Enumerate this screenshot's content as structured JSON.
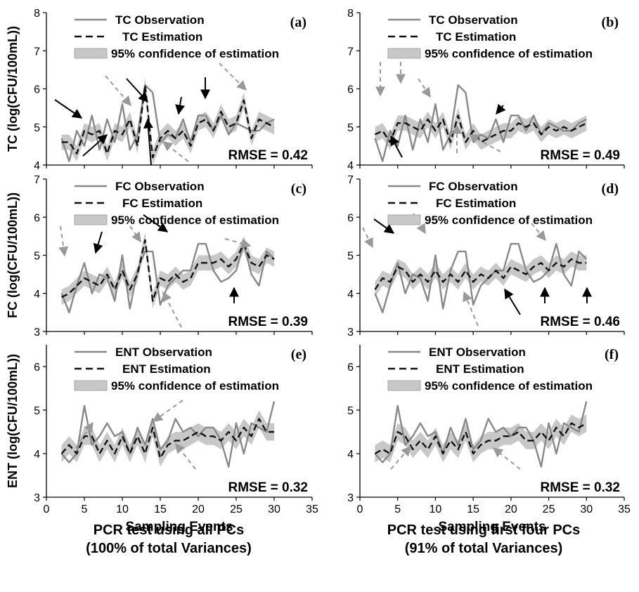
{
  "figure": {
    "captions": [
      {
        "line1": "PCR test using all PCs",
        "line2": "(100% of total Variances)"
      },
      {
        "line1": "PCR test using first four PCs",
        "line2": "(91% of total Variances)"
      }
    ],
    "xlabel": "Sampling Events",
    "legend_labels": {
      "conf": "95% confidence of estimation"
    },
    "colors": {
      "observation": "#888888",
      "estimation": "#111111",
      "confidence": "#c8c8c8",
      "arrow_black": "#000000",
      "arrow_gray": "#999999"
    }
  },
  "chart_data": [
    {
      "type": "line",
      "panel": "(a)",
      "ylabel": "TC (log(CFU/100mL))",
      "ylim": [
        4,
        8
      ],
      "yticks": [
        4,
        5,
        6,
        7,
        8
      ],
      "xlim": [
        0,
        35
      ],
      "xticks": [
        0,
        5,
        10,
        15,
        20,
        25,
        30,
        35
      ],
      "rmse": "RMSE = 0.42",
      "series": [
        {
          "name": "TC Observation",
          "kind": "observation",
          "x": [
            2,
            3,
            4,
            5,
            6,
            7,
            8,
            9,
            10,
            11,
            12,
            13,
            14,
            15,
            16,
            17,
            18,
            19,
            20,
            21,
            22,
            23,
            24,
            25,
            26,
            27,
            28,
            29,
            30
          ],
          "values": [
            4.7,
            4.1,
            4.9,
            4.5,
            5.3,
            4.4,
            5.2,
            4.6,
            5.6,
            4.4,
            4.8,
            6.1,
            5.9,
            4.6,
            4.8,
            4.7,
            5.2,
            4.6,
            5.3,
            5.3,
            4.9,
            5.3,
            4.8,
            5.1,
            5.0,
            4.9,
            4.9,
            5.1,
            5.2
          ]
        },
        {
          "name": "TC Estimation",
          "kind": "estimation",
          "x": [
            2,
            3,
            4,
            5,
            6,
            7,
            8,
            9,
            10,
            11,
            12,
            13,
            14,
            15,
            16,
            17,
            18,
            19,
            20,
            21,
            22,
            23,
            24,
            25,
            26,
            27,
            28,
            29,
            30
          ],
          "values": [
            4.6,
            4.6,
            4.3,
            4.9,
            4.8,
            4.9,
            4.3,
            4.9,
            4.8,
            5.2,
            4.5,
            6.1,
            4.2,
            4.7,
            4.9,
            4.7,
            4.9,
            4.5,
            5.1,
            5.2,
            4.9,
            5.4,
            5.0,
            5.1,
            5.7,
            4.7,
            5.2,
            5.1,
            5.0
          ]
        }
      ]
    },
    {
      "type": "line",
      "panel": "(b)",
      "ylabel": "",
      "ylim": [
        4,
        8
      ],
      "yticks": [
        4,
        5,
        6,
        7,
        8
      ],
      "xlim": [
        0,
        35
      ],
      "xticks": [
        0,
        5,
        10,
        15,
        20,
        25,
        30,
        35
      ],
      "rmse": "RMSE = 0.49",
      "series": [
        {
          "name": "TC Observation",
          "kind": "observation",
          "x": [
            2,
            3,
            4,
            5,
            6,
            7,
            8,
            9,
            10,
            11,
            12,
            13,
            14,
            15,
            16,
            17,
            18,
            19,
            20,
            21,
            22,
            23,
            24,
            25,
            26,
            27,
            28,
            29,
            30
          ],
          "values": [
            4.7,
            4.1,
            4.9,
            4.5,
            5.3,
            4.4,
            5.2,
            4.6,
            5.6,
            4.4,
            4.8,
            6.1,
            5.9,
            4.6,
            4.8,
            4.7,
            5.2,
            4.6,
            5.3,
            5.3,
            4.9,
            5.3,
            4.8,
            5.1,
            5.0,
            4.9,
            4.9,
            5.1,
            5.2
          ]
        },
        {
          "name": "TC Estimation",
          "kind": "estimation",
          "x": [
            2,
            3,
            4,
            5,
            6,
            7,
            8,
            9,
            10,
            11,
            12,
            13,
            14,
            15,
            16,
            17,
            18,
            19,
            20,
            21,
            22,
            23,
            24,
            25,
            26,
            27,
            28,
            29,
            30
          ],
          "values": [
            4.8,
            4.9,
            4.6,
            5.1,
            5.1,
            5.0,
            4.9,
            5.2,
            4.9,
            5.2,
            4.6,
            5.3,
            4.6,
            4.9,
            4.6,
            4.7,
            4.8,
            4.9,
            4.9,
            5.1,
            5.0,
            5.1,
            4.8,
            5.0,
            4.9,
            5.0,
            4.9,
            5.0,
            5.1
          ]
        }
      ]
    },
    {
      "type": "line",
      "panel": "(c)",
      "ylabel": "FC (log(CFU/100mL))",
      "ylim": [
        3,
        7
      ],
      "yticks": [
        3,
        4,
        5,
        6,
        7
      ],
      "xlim": [
        0,
        35
      ],
      "xticks": [
        0,
        5,
        10,
        15,
        20,
        25,
        30,
        35
      ],
      "rmse": "RMSE = 0.39",
      "series": [
        {
          "name": "FC Observation",
          "kind": "observation",
          "x": [
            2,
            3,
            4,
            5,
            6,
            7,
            8,
            9,
            10,
            11,
            12,
            13,
            14,
            15,
            16,
            17,
            18,
            19,
            20,
            21,
            22,
            23,
            24,
            25,
            26,
            27,
            28,
            29,
            30
          ],
          "values": [
            4.0,
            3.5,
            4.2,
            4.8,
            4.0,
            4.5,
            4.4,
            3.8,
            5.0,
            3.6,
            4.6,
            5.1,
            5.1,
            3.7,
            4.2,
            4.4,
            4.6,
            4.6,
            5.3,
            5.3,
            4.6,
            4.3,
            4.4,
            4.6,
            5.3,
            4.5,
            4.2,
            5.1,
            4.9
          ]
        },
        {
          "name": "FC Estimation",
          "kind": "estimation",
          "x": [
            2,
            3,
            4,
            5,
            6,
            7,
            8,
            9,
            10,
            11,
            12,
            13,
            14,
            15,
            16,
            17,
            18,
            19,
            20,
            21,
            22,
            23,
            24,
            25,
            26,
            27,
            28,
            29,
            30
          ],
          "values": [
            3.9,
            4.0,
            4.2,
            4.4,
            4.3,
            4.2,
            4.5,
            4.1,
            4.6,
            4.1,
            4.5,
            5.4,
            3.8,
            4.4,
            4.3,
            4.5,
            4.3,
            4.4,
            4.8,
            4.8,
            4.8,
            4.9,
            4.7,
            4.9,
            5.3,
            4.8,
            4.7,
            5.0,
            4.9
          ]
        }
      ]
    },
    {
      "type": "line",
      "panel": "(d)",
      "ylabel": "",
      "ylim": [
        3,
        7
      ],
      "yticks": [
        3,
        4,
        5,
        6,
        7
      ],
      "xlim": [
        0,
        35
      ],
      "xticks": [
        0,
        5,
        10,
        15,
        20,
        25,
        30,
        35
      ],
      "rmse": "RMSE = 0.46",
      "series": [
        {
          "name": "FC Observation",
          "kind": "observation",
          "x": [
            2,
            3,
            4,
            5,
            6,
            7,
            8,
            9,
            10,
            11,
            12,
            13,
            14,
            15,
            16,
            17,
            18,
            19,
            20,
            21,
            22,
            23,
            24,
            25,
            26,
            27,
            28,
            29,
            30
          ],
          "values": [
            4.0,
            3.5,
            4.2,
            4.8,
            4.0,
            4.5,
            4.4,
            3.8,
            5.0,
            3.6,
            4.6,
            5.1,
            5.1,
            3.7,
            4.2,
            4.4,
            4.6,
            4.6,
            5.3,
            5.3,
            4.6,
            4.3,
            4.4,
            4.6,
            5.3,
            4.5,
            4.2,
            5.1,
            4.9
          ]
        },
        {
          "name": "FC Estimation",
          "kind": "estimation",
          "x": [
            2,
            3,
            4,
            5,
            6,
            7,
            8,
            9,
            10,
            11,
            12,
            13,
            14,
            15,
            16,
            17,
            18,
            19,
            20,
            21,
            22,
            23,
            24,
            25,
            26,
            27,
            28,
            29,
            30
          ],
          "values": [
            4.1,
            4.4,
            4.3,
            4.7,
            4.6,
            4.3,
            4.5,
            4.3,
            4.6,
            4.3,
            4.5,
            4.3,
            4.6,
            4.3,
            4.5,
            4.4,
            4.6,
            4.4,
            4.7,
            4.6,
            4.5,
            4.7,
            4.8,
            4.6,
            4.8,
            4.7,
            4.9,
            4.8,
            4.8
          ]
        }
      ]
    },
    {
      "type": "line",
      "panel": "(e)",
      "ylabel": "ENT (log(CFU/100mL))",
      "ylim": [
        3,
        6.5
      ],
      "yticks": [
        3,
        4,
        5,
        6
      ],
      "xlim": [
        0,
        35
      ],
      "xticks": [
        0,
        5,
        10,
        15,
        20,
        25,
        30,
        35
      ],
      "rmse": "RMSE = 0.32",
      "series": [
        {
          "name": "ENT Observation",
          "kind": "observation",
          "x": [
            2,
            3,
            4,
            5,
            6,
            7,
            8,
            9,
            10,
            11,
            12,
            13,
            14,
            15,
            16,
            17,
            18,
            19,
            20,
            21,
            22,
            23,
            24,
            25,
            26,
            27,
            28,
            29,
            30
          ],
          "values": [
            4.0,
            3.8,
            4.0,
            5.1,
            4.2,
            4.4,
            4.7,
            4.4,
            4.5,
            4.0,
            4.6,
            4.2,
            4.8,
            4.1,
            4.3,
            4.8,
            4.5,
            4.6,
            4.4,
            4.6,
            4.6,
            4.3,
            3.7,
            4.7,
            4.0,
            4.7,
            4.6,
            4.5,
            5.2
          ]
        },
        {
          "name": "ENT Estimation",
          "kind": "estimation",
          "x": [
            2,
            3,
            4,
            5,
            6,
            7,
            8,
            9,
            10,
            11,
            12,
            13,
            14,
            15,
            16,
            17,
            18,
            19,
            20,
            21,
            22,
            23,
            24,
            25,
            26,
            27,
            28,
            29,
            30
          ],
          "values": [
            4.0,
            4.2,
            4.0,
            4.4,
            4.4,
            4.0,
            4.3,
            4.0,
            4.4,
            4.0,
            4.4,
            4.0,
            4.6,
            3.9,
            4.2,
            4.3,
            4.3,
            4.4,
            4.5,
            4.4,
            4.4,
            4.3,
            4.5,
            4.3,
            4.6,
            4.4,
            4.8,
            4.5,
            4.5
          ]
        }
      ]
    },
    {
      "type": "line",
      "panel": "(f)",
      "ylabel": "",
      "ylim": [
        3,
        6.5
      ],
      "yticks": [
        3,
        4,
        5,
        6
      ],
      "xlim": [
        0,
        35
      ],
      "xticks": [
        0,
        5,
        10,
        15,
        20,
        25,
        30,
        35
      ],
      "rmse": "RMSE = 0.32",
      "series": [
        {
          "name": "ENT Observation",
          "kind": "observation",
          "x": [
            2,
            3,
            4,
            5,
            6,
            7,
            8,
            9,
            10,
            11,
            12,
            13,
            14,
            15,
            16,
            17,
            18,
            19,
            20,
            21,
            22,
            23,
            24,
            25,
            26,
            27,
            28,
            29,
            30
          ],
          "values": [
            4.0,
            3.8,
            4.0,
            5.1,
            4.2,
            4.4,
            4.7,
            4.4,
            4.5,
            4.0,
            4.6,
            4.2,
            4.8,
            4.1,
            4.3,
            4.8,
            4.5,
            4.6,
            4.4,
            4.6,
            4.6,
            4.3,
            3.7,
            4.7,
            4.0,
            4.7,
            4.6,
            4.5,
            5.2
          ]
        },
        {
          "name": "ENT Estimation",
          "kind": "estimation",
          "x": [
            2,
            3,
            4,
            5,
            6,
            7,
            8,
            9,
            10,
            11,
            12,
            13,
            14,
            15,
            16,
            17,
            18,
            19,
            20,
            21,
            22,
            23,
            24,
            25,
            26,
            27,
            28,
            29,
            30
          ],
          "values": [
            4.0,
            4.1,
            4.0,
            4.5,
            4.4,
            4.1,
            4.3,
            4.1,
            4.4,
            4.0,
            4.3,
            4.1,
            4.5,
            4.0,
            4.2,
            4.3,
            4.3,
            4.4,
            4.4,
            4.5,
            4.3,
            4.3,
            4.5,
            4.3,
            4.6,
            4.4,
            4.7,
            4.6,
            4.7
          ]
        }
      ]
    }
  ]
}
